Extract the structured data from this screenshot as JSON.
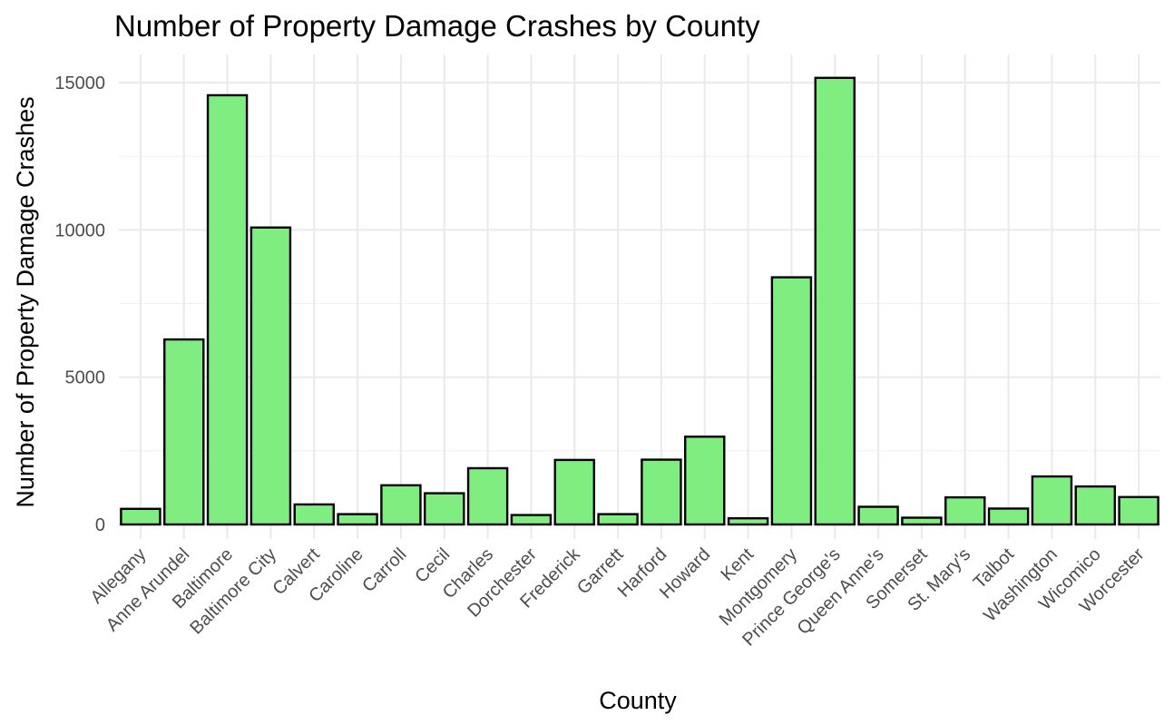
{
  "chart_data": {
    "type": "bar",
    "title": "Number of Property Damage Crashes by County",
    "xlabel": "County",
    "ylabel": "Number of Property Damage Crashes",
    "categories": [
      "Allegany",
      "Anne Arundel",
      "Baltimore",
      "Baltimore City",
      "Calvert",
      "Caroline",
      "Carroll",
      "Cecil",
      "Charles",
      "Dorchester",
      "Frederick",
      "Garrett",
      "Harford",
      "Howard",
      "Kent",
      "Montgomery",
      "Prince George's",
      "Queen Anne's",
      "Somerset",
      "St. Mary's",
      "Talbot",
      "Washington",
      "Wicomico",
      "Worcester"
    ],
    "values": [
      530,
      6280,
      14570,
      10080,
      680,
      350,
      1330,
      1060,
      1910,
      320,
      2190,
      350,
      2200,
      2980,
      210,
      8390,
      15160,
      600,
      230,
      920,
      540,
      1630,
      1290,
      930
    ],
    "ylim": [
      0,
      15900
    ],
    "yticks": [
      0,
      5000,
      10000,
      15000
    ],
    "ytick_labels": [
      "0",
      "5000",
      "10000",
      "15000"
    ],
    "bar_fill": "#80ed80",
    "bar_outline": "#000000",
    "grid": true,
    "legend": "none"
  }
}
